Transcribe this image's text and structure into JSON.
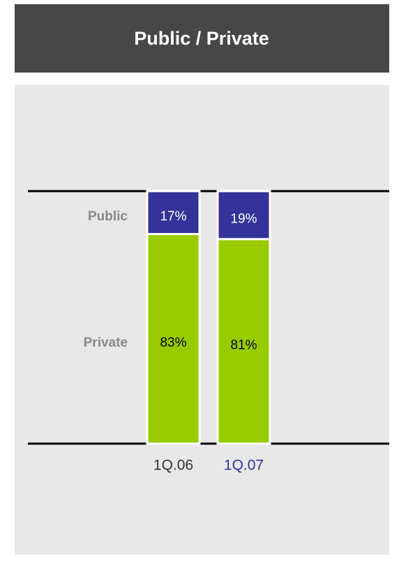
{
  "chart_data": {
    "type": "stacked_bar",
    "title": "Public / Private",
    "categories": [
      "1Q.06",
      "1Q.07"
    ],
    "category_colors": [
      "#333333",
      "#333399"
    ],
    "series": [
      {
        "name": "Private",
        "color": "#99cc00",
        "values": [
          83,
          81
        ],
        "value_labels": [
          "83%",
          "81%"
        ]
      },
      {
        "name": "Public",
        "color": "#333399",
        "values": [
          17,
          19
        ],
        "value_labels": [
          "17%",
          "19%"
        ]
      }
    ],
    "ylim": [
      0,
      100
    ]
  }
}
